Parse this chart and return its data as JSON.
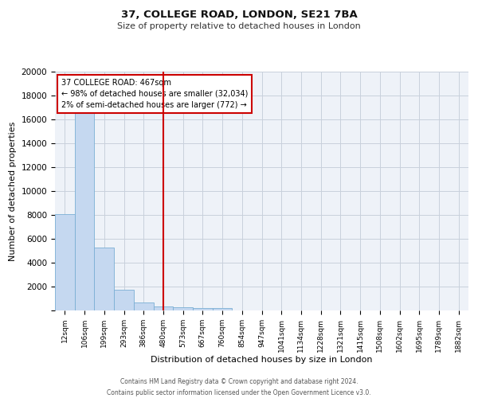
{
  "title1": "37, COLLEGE ROAD, LONDON, SE21 7BA",
  "title2": "Size of property relative to detached houses in London",
  "xlabel": "Distribution of detached houses by size in London",
  "ylabel": "Number of detached properties",
  "bar_labels": [
    "12sqm",
    "106sqm",
    "199sqm",
    "293sqm",
    "386sqm",
    "480sqm",
    "573sqm",
    "667sqm",
    "760sqm",
    "854sqm",
    "947sqm",
    "1041sqm",
    "1134sqm",
    "1228sqm",
    "1321sqm",
    "1415sqm",
    "1508sqm",
    "1602sqm",
    "1695sqm",
    "1789sqm",
    "1882sqm"
  ],
  "bar_values": [
    8100,
    16500,
    5300,
    1750,
    700,
    350,
    280,
    220,
    200,
    0,
    0,
    0,
    0,
    0,
    0,
    0,
    0,
    0,
    0,
    0,
    0
  ],
  "bar_color": "#c5d8f0",
  "bar_edge_color": "#7aafd4",
  "vline_x": 5.0,
  "vline_color": "#cc0000",
  "annotation_box_text": "37 COLLEGE ROAD: 467sqm\n← 98% of detached houses are smaller (32,034)\n2% of semi-detached houses are larger (772) →",
  "annotation_box_color": "#cc0000",
  "ylim": [
    0,
    20000
  ],
  "yticks": [
    0,
    2000,
    4000,
    6000,
    8000,
    10000,
    12000,
    14000,
    16000,
    18000,
    20000
  ],
  "grid_color": "#c8d0dc",
  "background_color": "#eef2f8",
  "footer_line1": "Contains HM Land Registry data © Crown copyright and database right 2024.",
  "footer_line2": "Contains public sector information licensed under the Open Government Licence v3.0."
}
